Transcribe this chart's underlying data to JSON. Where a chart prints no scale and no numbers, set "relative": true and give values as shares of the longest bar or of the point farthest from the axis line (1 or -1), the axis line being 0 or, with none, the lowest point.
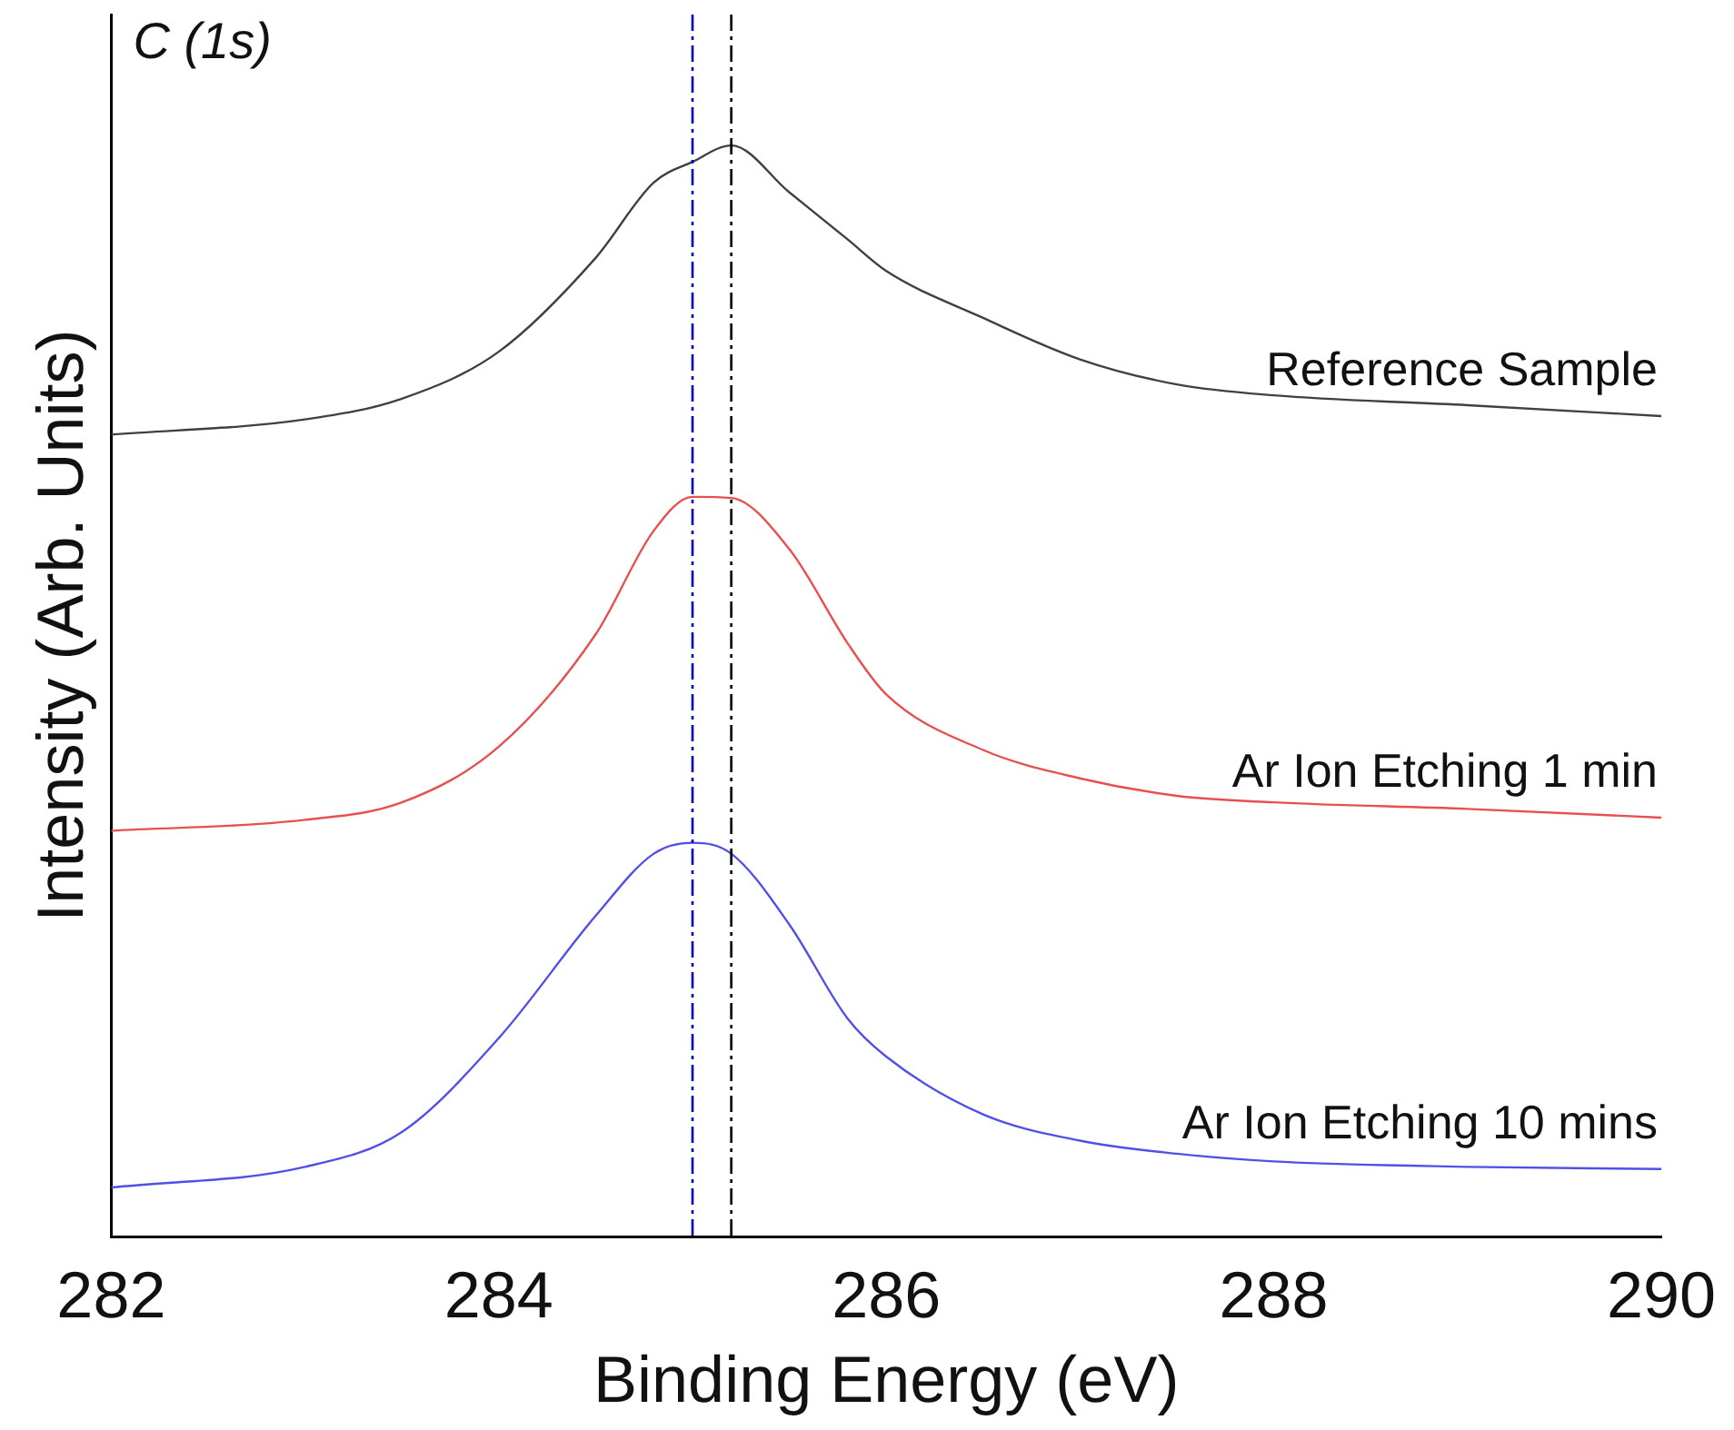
{
  "chart_data": {
    "type": "line",
    "xlabel": "Binding Energy (eV)",
    "ylabel": "Intensity (Arb. Units)",
    "annotations": [
      "C (1s)"
    ],
    "relative": true,
    "tick_labels": "x",
    "grid": false,
    "legend": false,
    "marker": "none",
    "line_style": "solid",
    "xlim": [
      282,
      290
    ],
    "xticks": [
      282,
      284,
      286,
      288,
      290
    ],
    "x": [
      282,
      283,
      283.5,
      284,
      284.5,
      284.8,
      285.0,
      285.2,
      285.5,
      285.8,
      286,
      286.5,
      287,
      287.5,
      288,
      289,
      290
    ],
    "series": [
      {
        "name": "Reference Sample",
        "color": "#404040",
        "values": [
          0.735,
          0.749,
          0.768,
          0.811,
          0.897,
          0.966,
          0.985,
          1,
          0.957,
          0.914,
          0.885,
          0.842,
          0.804,
          0.781,
          0.771,
          0.762,
          0.752
        ]
      },
      {
        "name": "Ar Ion Etching 1 min",
        "color": "#e85050",
        "values": [
          0.372,
          0.382,
          0.398,
          0.449,
          0.552,
          0.647,
          0.678,
          0.677,
          0.63,
          0.544,
          0.497,
          0.446,
          0.42,
          0.404,
          0.398,
          0.392,
          0.384
        ]
      },
      {
        "name": "Ar Ion Etching 10 mins",
        "color": "#5050e8",
        "values": [
          0.045,
          0.064,
          0.096,
          0.182,
          0.294,
          0.351,
          0.361,
          0.351,
          0.286,
          0.2,
          0.165,
          0.112,
          0.088,
          0.076,
          0.069,
          0.064,
          0.062
        ]
      }
    ],
    "ref_lines": [
      {
        "axis": "x",
        "value": 285.0,
        "color": "#0000cc",
        "line_style": "dashed"
      },
      {
        "axis": "x",
        "value": 285.2,
        "color": "#000000",
        "line_style": "dashed"
      }
    ]
  }
}
